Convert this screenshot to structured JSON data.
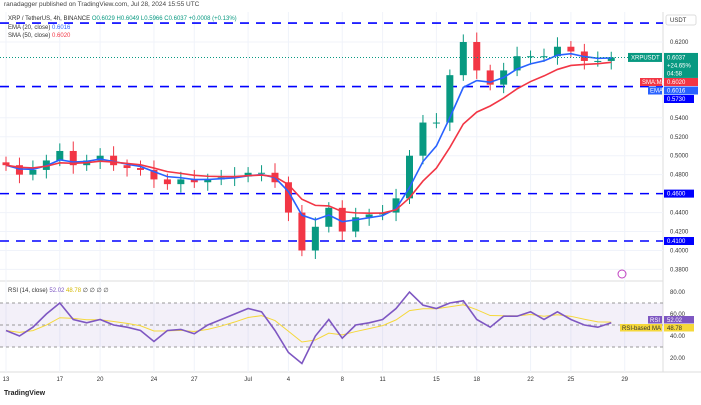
{
  "publish_line": "ranadagger published on TradingView.com, Jul 28, 2024 15:55 UTC",
  "legend": {
    "symbol": "XRP / TetherUS, 4h, BINANCE",
    "o": "O0.6029",
    "h": "H0.6049",
    "l": "L0.5966",
    "c": "C0.6037",
    "change": "+0.0008 (+0.13%)",
    "ema_label": "EMA (20, close)",
    "ema_value": "0.6016",
    "sma_label": "SMA (50, close)",
    "sma_value": "0.6020"
  },
  "price_axis": {
    "currency": "USDT",
    "ticks": [
      "0.6200",
      "0.5400",
      "0.5200",
      "0.5000",
      "0.4800",
      "0.4400",
      "0.4200",
      "0.4000",
      "0.3800"
    ],
    "tick_values": [
      0.62,
      0.54,
      0.52,
      0.5,
      0.48,
      0.44,
      0.42,
      0.4,
      0.38
    ]
  },
  "tags": {
    "symbol": "XRPUSDT",
    "price": "0.6037",
    "change_pct": "+24.65%",
    "countdown": "04:58",
    "sma_name": "SMA:MA",
    "sma": "0.6020",
    "ema_name": "EMA",
    "ema": "0.6016"
  },
  "levels": [
    {
      "value": 0.64,
      "label": ""
    },
    {
      "value": 0.573,
      "label": "0.5730"
    },
    {
      "value": 0.46,
      "label": "0.4600"
    },
    {
      "value": 0.41,
      "label": "0.4100"
    }
  ],
  "time_axis": {
    "labels": [
      "13",
      "17",
      "20",
      "24",
      "27",
      "Jul",
      "4",
      "8",
      "11",
      "15",
      "18",
      "22",
      "25",
      "29"
    ],
    "day_index": [
      0,
      4,
      7,
      11,
      14,
      18,
      21,
      25,
      28,
      32,
      35,
      39,
      42,
      46
    ]
  },
  "rsi": {
    "label": "RSI (14, close)",
    "value": "52.02",
    "ma_value": "48.78",
    "extra": "∅ ∅ ∅ ∅",
    "tag_rsi": "RSI",
    "tag_ma": "RSI-based MA",
    "ticks": [
      "80.00",
      "60.00",
      "40.00",
      "20.00"
    ],
    "tick_values": [
      80,
      60,
      40,
      20
    ],
    "bands": [
      70,
      50,
      30
    ]
  },
  "colors": {
    "up": "#089981",
    "down": "#f23645",
    "ema": "#2962ff",
    "sma": "#f23645",
    "rsi": "#7e57c2",
    "rsi_ma": "#f5d83a",
    "level": "#0000ff"
  },
  "brand": "TradingView",
  "chart_data": {
    "type": "candlestick",
    "x_unit": "day (Jun 13 – Jul 28, 2024)",
    "dates": [
      "Jun 13",
      "Jun 14",
      "Jun 15",
      "Jun 16",
      "Jun 17",
      "Jun 18",
      "Jun 19",
      "Jun 20",
      "Jun 21",
      "Jun 22",
      "Jun 23",
      "Jun 24",
      "Jun 25",
      "Jun 26",
      "Jun 27",
      "Jun 28",
      "Jun 29",
      "Jun 30",
      "Jul 1",
      "Jul 2",
      "Jul 3",
      "Jul 4",
      "Jul 5",
      "Jul 6",
      "Jul 7",
      "Jul 8",
      "Jul 9",
      "Jul 10",
      "Jul 11",
      "Jul 12",
      "Jul 13",
      "Jul 14",
      "Jul 15",
      "Jul 16",
      "Jul 17",
      "Jul 18",
      "Jul 19",
      "Jul 20",
      "Jul 21",
      "Jul 22",
      "Jul 23",
      "Jul 24",
      "Jul 25",
      "Jul 26",
      "Jul 27",
      "Jul 28"
    ],
    "close": [
      0.49,
      0.48,
      0.485,
      0.495,
      0.505,
      0.49,
      0.495,
      0.5,
      0.49,
      0.487,
      0.485,
      0.475,
      0.47,
      0.475,
      0.472,
      0.475,
      0.477,
      0.478,
      0.482,
      0.482,
      0.472,
      0.44,
      0.4,
      0.425,
      0.445,
      0.42,
      0.435,
      0.438,
      0.44,
      0.455,
      0.5,
      0.535,
      0.535,
      0.585,
      0.62,
      0.59,
      0.575,
      0.59,
      0.605,
      0.605,
      0.605,
      0.615,
      0.61,
      0.6,
      0.6,
      0.6037
    ],
    "rsi": [
      45,
      40,
      48,
      60,
      70,
      55,
      52,
      55,
      50,
      48,
      45,
      35,
      45,
      46,
      42,
      50,
      55,
      60,
      65,
      62,
      45,
      25,
      15,
      40,
      55,
      38,
      50,
      52,
      55,
      65,
      80,
      68,
      65,
      70,
      72,
      55,
      48,
      58,
      58,
      62,
      55,
      62,
      55,
      50,
      48,
      52
    ],
    "ylim": [
      0.37,
      0.65
    ]
  }
}
